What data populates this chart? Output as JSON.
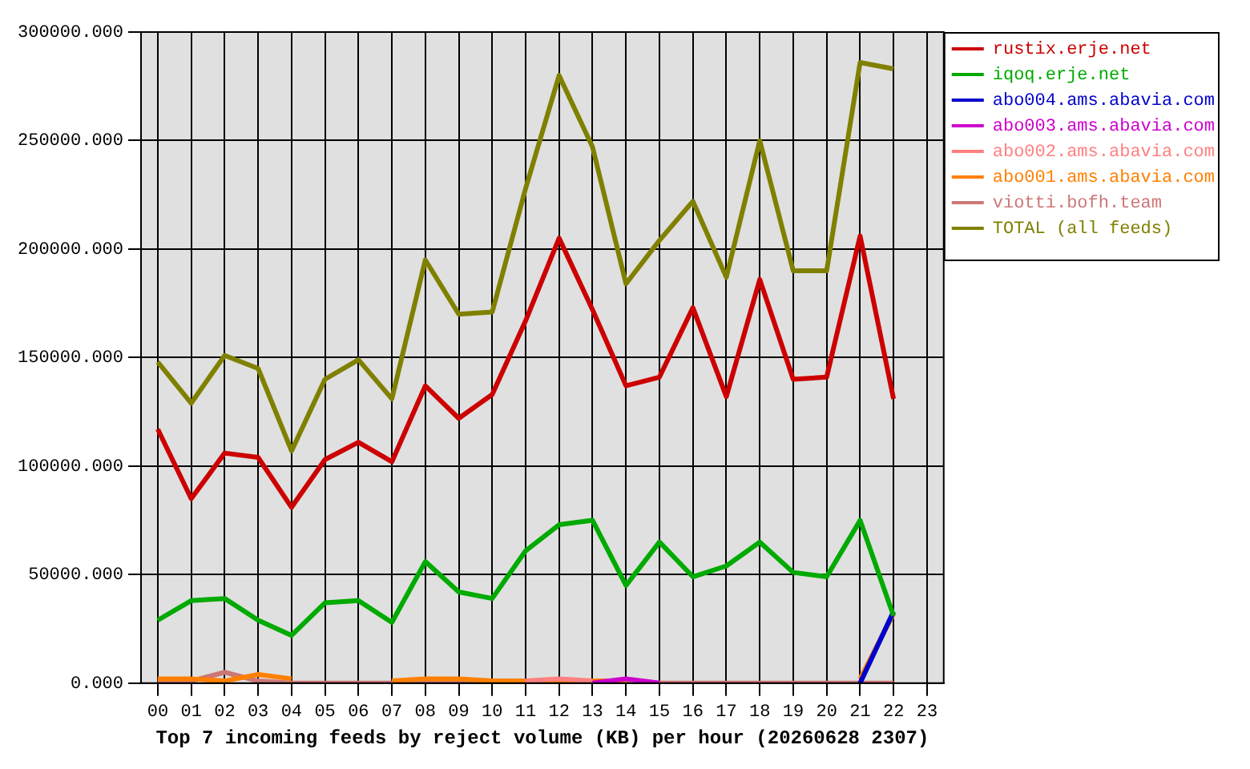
{
  "chart_data": {
    "type": "line",
    "xlabel": "Top 7 incoming feeds by reject volume (KB) per hour (20260628 2307)",
    "categories": [
      "00",
      "01",
      "02",
      "03",
      "04",
      "05",
      "06",
      "07",
      "08",
      "09",
      "10",
      "11",
      "12",
      "13",
      "14",
      "15",
      "16",
      "17",
      "18",
      "19",
      "20",
      "21",
      "22",
      "23"
    ],
    "ylim": [
      0,
      300000
    ],
    "yticks": [
      {
        "value": 0,
        "label": "0.000"
      },
      {
        "value": 50000,
        "label": "50000.000"
      },
      {
        "value": 100000,
        "label": "100000.000"
      },
      {
        "value": 150000,
        "label": "150000.000"
      },
      {
        "value": 200000,
        "label": "200000.000"
      },
      {
        "value": 250000,
        "label": "250000.000"
      },
      {
        "value": 300000,
        "label": "300000.000"
      }
    ],
    "grid": true,
    "legend": "top right",
    "marker": "none",
    "line_style": "solid",
    "series": [
      {
        "name": "rustix.erje.net",
        "color": "#cc0000",
        "values": [
          117000,
          85000,
          106000,
          104000,
          81000,
          103000,
          111000,
          102000,
          137000,
          122000,
          133000,
          167000,
          205000,
          172000,
          137000,
          141000,
          173000,
          132000,
          186000,
          140000,
          141000,
          206000,
          131000,
          null
        ]
      },
      {
        "name": "iqoq.erje.net",
        "color": "#00aa00",
        "values": [
          29000,
          38000,
          39000,
          29000,
          22000,
          37000,
          38000,
          28000,
          56000,
          42000,
          39000,
          61000,
          73000,
          75000,
          45000,
          65000,
          49000,
          54000,
          65000,
          51000,
          49000,
          75000,
          31000,
          null
        ]
      },
      {
        "name": "abo004.ams.abavia.com",
        "color": "#0000cc",
        "values": [
          null,
          null,
          null,
          null,
          null,
          null,
          null,
          null,
          null,
          null,
          null,
          null,
          null,
          null,
          null,
          null,
          null,
          null,
          null,
          null,
          null,
          0,
          33000,
          null
        ]
      },
      {
        "name": "abo003.ams.abavia.com",
        "color": "#cc00cc",
        "values": [
          null,
          null,
          null,
          null,
          null,
          null,
          null,
          null,
          null,
          null,
          null,
          null,
          null,
          0,
          2000,
          0,
          null,
          null,
          null,
          null,
          null,
          null,
          null,
          null
        ]
      },
      {
        "name": "abo002.ams.abavia.com",
        "color": "#ff8080",
        "values": [
          null,
          null,
          null,
          null,
          null,
          null,
          null,
          null,
          null,
          null,
          null,
          1000,
          2000,
          1000,
          null,
          null,
          null,
          null,
          null,
          null,
          null,
          null,
          null,
          null
        ]
      },
      {
        "name": "abo001.ams.abavia.com",
        "color": "#ff8000",
        "values": [
          2000,
          2000,
          1000,
          4000,
          2000,
          null,
          null,
          1000,
          2000,
          2000,
          1000,
          1000,
          1000,
          1000,
          1000,
          null,
          null,
          null,
          null,
          null,
          null,
          2000,
          32000,
          null
        ]
      },
      {
        "name": "viotti.bofh.team",
        "color": "#cc7777",
        "values": [
          1000,
          1000,
          5000,
          1000,
          0,
          0,
          0,
          0,
          0,
          0,
          0,
          0,
          0,
          0,
          0,
          0,
          0,
          0,
          0,
          0,
          0,
          0,
          0,
          null
        ]
      },
      {
        "name": "TOTAL (all feeds)",
        "color": "#808000",
        "values": [
          148000,
          129000,
          151000,
          145000,
          107000,
          140000,
          149000,
          131000,
          195000,
          170000,
          171000,
          228000,
          280000,
          247000,
          184000,
          204000,
          222000,
          187000,
          250000,
          190000,
          190000,
          286000,
          283000,
          null
        ]
      }
    ]
  }
}
